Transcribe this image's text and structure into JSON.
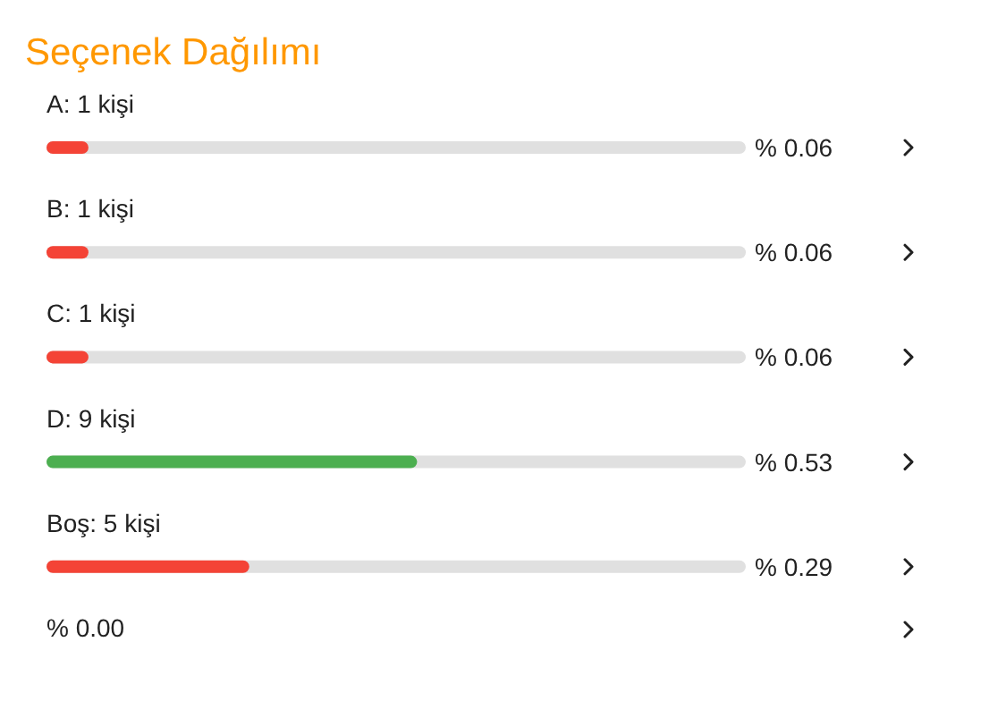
{
  "chart_data": {
    "type": "bar",
    "orientation": "horizontal",
    "title": "Seçenek Dağılımı",
    "categories": [
      "A: 1 kişi",
      "B: 1 kişi",
      "C: 1 kişi",
      "D: 9 kişi",
      "Boş: 5 kişi"
    ],
    "values": [
      0.06,
      0.06,
      0.06,
      0.53,
      0.29
    ],
    "colors": [
      "#f44336",
      "#f44336",
      "#f44336",
      "#4caf50",
      "#f44336"
    ],
    "value_labels": [
      "% 0.06",
      "% 0.06",
      "% 0.06",
      "% 0.53",
      "% 0.29"
    ],
    "xlim": [
      0,
      1
    ],
    "tick_labels": false,
    "annotations": [
      "% 0.00"
    ]
  }
}
